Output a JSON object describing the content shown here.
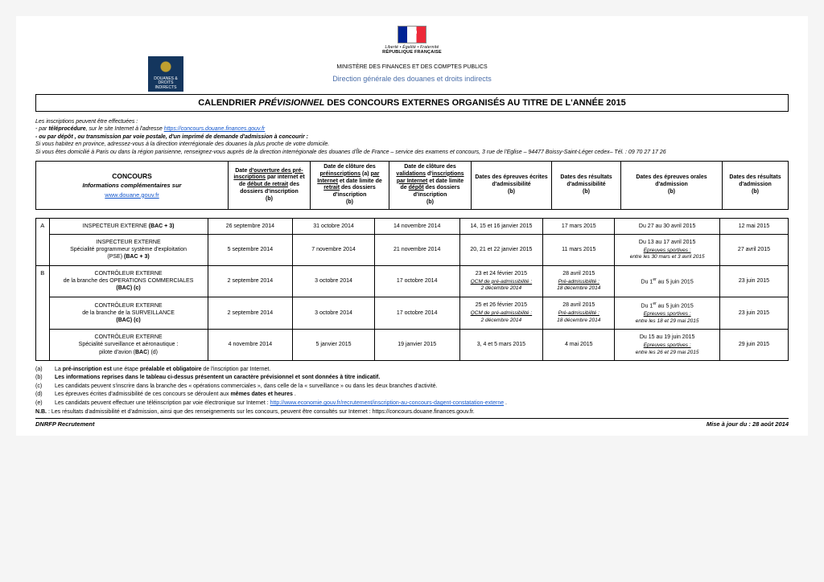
{
  "header": {
    "rf_motto": "Liberté • Égalité • Fraternité",
    "rf_name": "RÉPUBLIQUE FRANÇAISE",
    "douanes_label": "DOUANES & DROITS INDIRECTS",
    "ministry": "MINISTÈRE DES FINANCES ET DES COMPTES PUBLICS",
    "direction": "Direction générale des douanes et droits indirects"
  },
  "title": {
    "pre": "CALENDRIER ",
    "em": "PRÉVISIONNEL",
    "post": " DES CONCOURS EXTERNES ORGANISÉS AU TITRE DE L'ANNÉE 2015"
  },
  "intro": {
    "l1": "Les inscriptions peuvent être effectuées :",
    "l2a": "- par ",
    "l2b": "téléprocédure",
    "l2c": ", sur le site Internet à l'adresse ",
    "l2link": "https://concours.douane.finances.gouv.fr",
    "l3": "- ou par dépôt , ou transmission par voie postale, d'un imprimé de demande d'admission à concourir :",
    "l4": "Si vous habitez en province, adressez-vous à la direction interrégionale des douanes la plus proche de votre domicile.",
    "l5": "Si vous êtes domicilié à Paris ou dans la région parisienne, renseignez-vous auprès de la direction interrégionale des douanes d'Île de France – service des examens et concours, 3 rue de l'Eglise – 94477 Boissy-Saint-Léger  cedex– Tél. : 09 70 27 17 26"
  },
  "headcols": {
    "c1_title": "CONCOURS",
    "c1_sub": "Informations complémentaires sur",
    "c1_link": "www.douane.gouv.fr",
    "c2": "Date d'ouverture des pré-inscriptions par internet et de début de retrait des dossiers d'inscription (b)",
    "c3": "Date de clôture des préinscriptions (a) par Internet et date limite de retrait des dossiers d'inscription (b)",
    "c4": "Date de clôture des validations d'inscriptions par Internet et date limite de dépôt des dossiers d'inscription (b)",
    "c5": "Dates des épreuves écrites d'admissibilité (b)",
    "c6": "Dates des résultats d'admissibilité (b)",
    "c7": "Dates des épreuves orales d'admission (b)",
    "c8": "Dates des résultats d'admission (b)"
  },
  "rows": [
    {
      "cat": "A",
      "name_html": "INSPECTEUR EXTERNE <b>(BAC + 3)</b>",
      "c2": "26 septembre 2014",
      "c3": "31 octobre 2014",
      "c4": "14 novembre 2014",
      "c5": "14, 15 et 16 janvier 2015",
      "c6": "17 mars 2015",
      "c7": "Du 27 au 30 avril 2015",
      "c8": "12 mai 2015"
    },
    {
      "cat": "",
      "name_html": "INSPECTEUR EXTERNE<br>Spécialité programmeur système d'exploitation<br>(PSE) <b>(BAC + 3)</b>",
      "c2": "5 septembre 2014",
      "c3": "7 novembre 2014",
      "c4": "21 novembre 2014",
      "c5": "20, 21 et 22 janvier 2015",
      "c6": "11 mars 2015",
      "c7": "Du 13 au 17 avril 2015<span class='extra'>Epreuves sportives :</span><span class='extra-noul'>entre les 30 mars et 3 avril 2015</span>",
      "c8": "27 avril 2015"
    },
    {
      "cat": "B",
      "name_html": "CONTRÔLEUR EXTERNE<br>de la branche des OPERATIONS COMMERCIALES<br><b>(BAC) (c)</b>",
      "c2": "2 septembre 2014",
      "c3": "3 octobre 2014",
      "c4": "17 octobre 2014",
      "c5": "23 et 24 février 2015<span class='extra'>QCM de pré-admissibilité :</span><span class='extra-noul'>2 décembre 2014</span>",
      "c6": "28 avril 2015<span class='extra'>Pré-admissibilité :</span><span class='extra-noul'>18 décembre 2014</span>",
      "c7": "Du 1<span class='sup'>er</span> au 5 juin 2015",
      "c8": "23 juin 2015"
    },
    {
      "cat": "",
      "name_html": "CONTRÔLEUR EXTERNE<br>de la branche de la SURVEILLANCE<br><b>(BAC) (c)</b>",
      "c2": "2 septembre 2014",
      "c3": "3 octobre 2014",
      "c4": "17 octobre 2014",
      "c5": "25 et 26 février 2015<span class='extra'>QCM de pré-admissibilité :</span><span class='extra-noul'>2 décembre 2014</span>",
      "c6": "28 avril 2015<span class='extra'>Pré-admissibilité :</span><span class='extra-noul'>18 décembre 2014</span>",
      "c7": "Du 1<span class='sup'>er</span> au 5 juin 2015<span class='extra'>Epreuves sportives :</span><span class='extra-noul'>entre les 18 et 29 mai 2015</span>",
      "c8": "23 juin 2015"
    },
    {
      "cat": "",
      "name_html": "CONTRÔLEUR EXTERNE<br>Spécialité surveillance et aéronautique :<br>pilote d'avion (<b>BAC</b>) (d)",
      "c2": "4 novembre 2014",
      "c3": "5 janvier 2015",
      "c4": "19 janvier 2015",
      "c5": "3, 4 et 5 mars 2015",
      "c6": "4 mai 2015",
      "c7": "Du 15 au 19 juin 2015<span class='extra'>Epreuves sportives :</span><span class='extra-noul'>entre les 26 et 29 mai 2015</span>",
      "c8": "29 juin 2015"
    }
  ],
  "notes": {
    "a": "La pré-inscription est une étape préalable et obligatoire de l'inscription par Internet.",
    "b": "Les informations reprises dans le tableau ci-dessus présentent un caractère prévisionnel et sont données à titre indicatif.",
    "c": "Les candidats peuvent s'inscrire dans la branche des « opérations commerciales », dans celle de la « surveillance » ou dans les deux branches d'activité.",
    "d": "Les épreuves écrites d'admissibilité de ces concours se déroulent aux mêmes dates et heures .",
    "e_pre": "Les candidats peuvent effectuer une téléinscription par voie électronique sur Internet : ",
    "e_link": "http://www.economie.gouv.fr/recrutement/inscription-au-concours-dagent-constatation-externe",
    "e_post": " .",
    "nb_pre": "N.B. : Les résultats d'admissibilité et d'admission, ainsi que des renseignements sur les concours, peuvent être consultés sur Internet : ",
    "nb_link": "https://concours.douane.finances.gouv.fr",
    "nb_post": "."
  },
  "footer": {
    "left": "DNRFP Recrutement",
    "right": "Mise à jour du : 28 août 2014"
  }
}
